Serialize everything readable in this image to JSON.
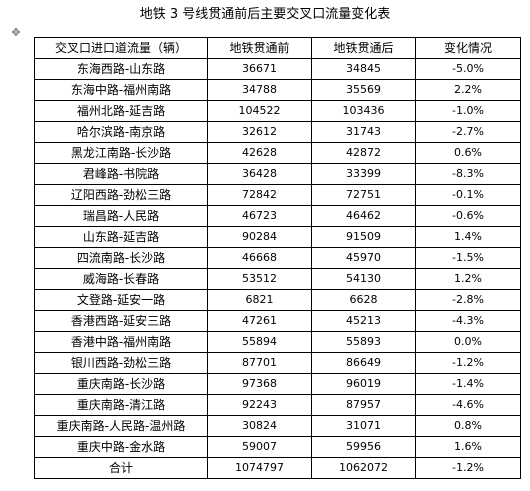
{
  "title": "地铁 3 号线贯通前后主要交叉口流量变化表",
  "move_handle_icon": "move-handle-icon",
  "table": {
    "headers": [
      "交叉口进口道流量（辆）",
      "地铁贯通前",
      "地铁贯通后",
      "变化情况"
    ],
    "rows": [
      {
        "name": "东海西路-山东路",
        "before": "36671",
        "after": "34845",
        "change": "-5.0%"
      },
      {
        "name": "东海中路-福州南路",
        "before": "34788",
        "after": "35569",
        "change": "2.2%"
      },
      {
        "name": "福州北路-延吉路",
        "before": "104522",
        "after": "103436",
        "change": "-1.0%"
      },
      {
        "name": "哈尔滨路-南京路",
        "before": "32612",
        "after": "31743",
        "change": "-2.7%"
      },
      {
        "name": "黑龙江南路-长沙路",
        "before": "42628",
        "after": "42872",
        "change": "0.6%"
      },
      {
        "name": "君峰路-书院路",
        "before": "36428",
        "after": "33399",
        "change": "-8.3%"
      },
      {
        "name": "辽阳西路-劲松三路",
        "before": "72842",
        "after": "72751",
        "change": "-0.1%"
      },
      {
        "name": "瑞昌路-人民路",
        "before": "46723",
        "after": "46462",
        "change": "-0.6%"
      },
      {
        "name": "山东路-延吉路",
        "before": "90284",
        "after": "91509",
        "change": "1.4%"
      },
      {
        "name": "四流南路-长沙路",
        "before": "46668",
        "after": "45970",
        "change": "-1.5%"
      },
      {
        "name": "威海路-长春路",
        "before": "53512",
        "after": "54130",
        "change": "1.2%"
      },
      {
        "name": "文登路-延安一路",
        "before": "6821",
        "after": "6628",
        "change": "-2.8%"
      },
      {
        "name": "香港西路-延安三路",
        "before": "47261",
        "after": "45213",
        "change": "-4.3%"
      },
      {
        "name": "香港中路-福州南路",
        "before": "55894",
        "after": "55893",
        "change": "0.0%"
      },
      {
        "name": "银川西路-劲松三路",
        "before": "87701",
        "after": "86649",
        "change": "-1.2%"
      },
      {
        "name": "重庆南路-长沙路",
        "before": "97368",
        "after": "96019",
        "change": "-1.4%"
      },
      {
        "name": "重庆南路-清江路",
        "before": "92243",
        "after": "87957",
        "change": "-4.6%"
      },
      {
        "name": "重庆南路-人民路-温州路",
        "before": "30824",
        "after": "31071",
        "change": "0.8%"
      },
      {
        "name": "重庆中路-金水路",
        "before": "59007",
        "after": "59956",
        "change": "1.6%"
      }
    ],
    "total": {
      "name": "合计",
      "before": "1074797",
      "after": "1062072",
      "change": "-1.2%"
    }
  }
}
